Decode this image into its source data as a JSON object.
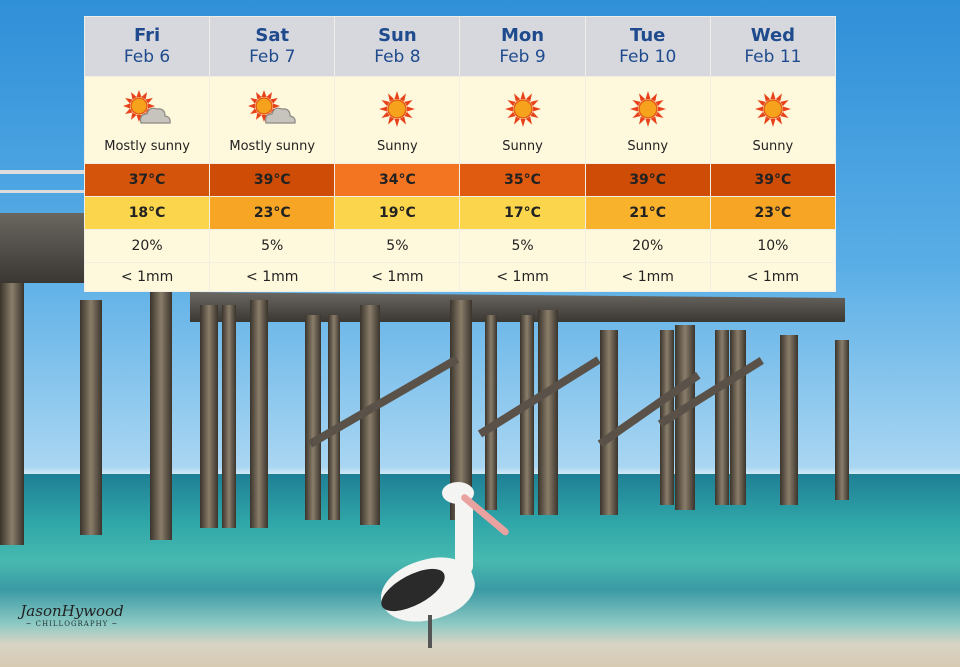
{
  "forecast": {
    "days": [
      {
        "day": "Fri",
        "date": "Feb 6",
        "icon": "sun-cloud-icon",
        "condition": "Mostly sunny",
        "max": "37°C",
        "max_color": "#d4540c",
        "min": "18°C",
        "min_color": "#fbd64c",
        "rain_chance": "20%",
        "rain_amount": "< 1mm"
      },
      {
        "day": "Sat",
        "date": "Feb 7",
        "icon": "sun-cloud-icon",
        "condition": "Mostly sunny",
        "max": "39°C",
        "max_color": "#cf4c06",
        "min": "23°C",
        "min_color": "#f6a524",
        "rain_chance": "5%",
        "rain_amount": "< 1mm"
      },
      {
        "day": "Sun",
        "date": "Feb 8",
        "icon": "sun-icon",
        "condition": "Sunny",
        "max": "34°C",
        "max_color": "#f47521",
        "min": "19°C",
        "min_color": "#fbd64c",
        "rain_chance": "5%",
        "rain_amount": "< 1mm"
      },
      {
        "day": "Mon",
        "date": "Feb 9",
        "icon": "sun-icon",
        "condition": "Sunny",
        "max": "35°C",
        "max_color": "#e05a10",
        "min": "17°C",
        "min_color": "#fbd64c",
        "rain_chance": "5%",
        "rain_amount": "< 1mm"
      },
      {
        "day": "Tue",
        "date": "Feb 10",
        "icon": "sun-icon",
        "condition": "Sunny",
        "max": "39°C",
        "max_color": "#cf4c06",
        "min": "21°C",
        "min_color": "#f8b22c",
        "rain_chance": "20%",
        "rain_amount": "< 1mm"
      },
      {
        "day": "Wed",
        "date": "Feb 11",
        "icon": "sun-icon",
        "condition": "Sunny",
        "max": "39°C",
        "max_color": "#cf4c06",
        "min": "23°C",
        "min_color": "#f6a524",
        "rain_chance": "10%",
        "rain_amount": "< 1mm"
      }
    ]
  },
  "watermark": {
    "name": "JasonHywood",
    "tagline": "~ CHILLOGRAPHY ~"
  }
}
